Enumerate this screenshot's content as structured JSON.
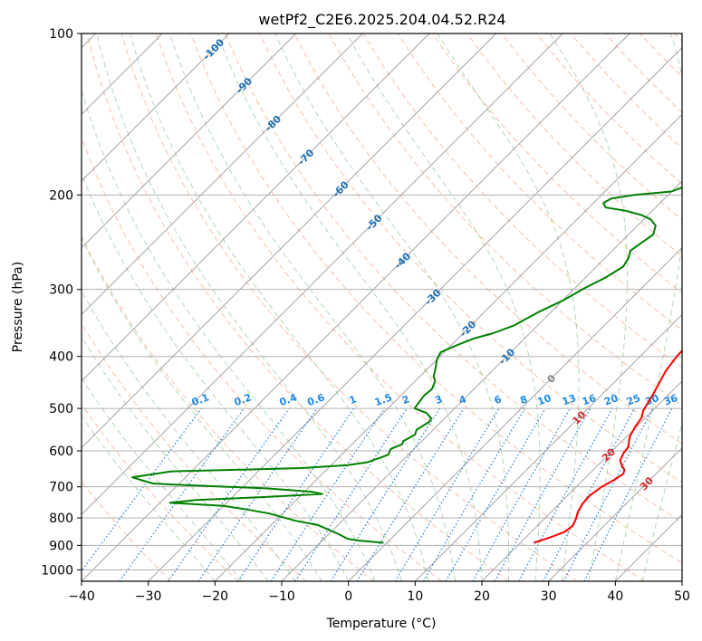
{
  "chart_data": {
    "type": "line",
    "title": "wetPf2_C2E6.2025.204.04.52.R24",
    "xlabel": "Temperature (°C)",
    "ylabel": "Pressure (hPa)",
    "xlim": [
      -40,
      50
    ],
    "ylim": [
      1050,
      100
    ],
    "y_scale": "log",
    "grid": true,
    "x_ticks": [
      "−40",
      "−30",
      "−20",
      "−10",
      "0",
      "10",
      "20",
      "30",
      "40",
      "50"
    ],
    "y_ticks": [
      "100",
      "200",
      "300",
      "400",
      "500",
      "600",
      "700",
      "800",
      "900",
      "1000"
    ],
    "series": [
      {
        "role": "temperature",
        "color": "#ff0000",
        "points": [
          [
            22.0,
            890
          ],
          [
            23.5,
            872
          ],
          [
            25.0,
            850
          ],
          [
            25.3,
            828
          ],
          [
            24.8,
            805
          ],
          [
            24.0,
            780
          ],
          [
            23.5,
            755
          ],
          [
            23.3,
            728
          ],
          [
            23.8,
            700
          ],
          [
            24.6,
            680
          ],
          [
            25.1,
            662
          ],
          [
            24.6,
            650
          ],
          [
            23.7,
            640
          ],
          [
            22.6,
            625
          ],
          [
            22.0,
            605
          ],
          [
            21.8,
            590
          ],
          [
            20.5,
            565
          ],
          [
            19.8,
            540
          ],
          [
            19.4,
            520
          ],
          [
            18.6,
            505
          ],
          [
            18.2,
            490
          ],
          [
            17.6,
            470
          ],
          [
            16.9,
            450
          ],
          [
            16.0,
            425
          ],
          [
            15.5,
            400
          ],
          [
            15.3,
            375
          ],
          [
            15.1,
            362
          ],
          [
            12.8,
            345
          ],
          [
            10.8,
            320
          ],
          [
            8.8,
            295
          ],
          [
            7.1,
            270
          ],
          [
            5.9,
            250
          ],
          [
            5.6,
            232
          ],
          [
            5.9,
            218
          ],
          [
            6.6,
            207
          ],
          [
            6.5,
            193
          ],
          [
            5.9,
            180
          ],
          [
            5.5,
            165
          ],
          [
            5.3,
            150
          ],
          [
            5.1,
            135
          ],
          [
            5.1,
            122
          ],
          [
            5.3,
            112
          ],
          [
            5.1,
            103
          ],
          [
            5.3,
            100
          ]
        ]
      },
      {
        "role": "dewpoint",
        "color": "#008000",
        "points": [
          [
            -0.5,
            890
          ],
          [
            -2.0,
            887
          ],
          [
            -4.5,
            882
          ],
          [
            -6.5,
            875
          ],
          [
            -8.5,
            858
          ],
          [
            -13.0,
            825
          ],
          [
            -17.0,
            810
          ],
          [
            -22.0,
            785
          ],
          [
            -26.5,
            770
          ],
          [
            -30.0,
            760
          ],
          [
            -36.5,
            752
          ],
          [
            -38.5,
            750
          ],
          [
            -35.0,
            741
          ],
          [
            -26.0,
            732
          ],
          [
            -17.0,
            722
          ],
          [
            -19.0,
            715
          ],
          [
            -26.0,
            705
          ],
          [
            -36.0,
            697
          ],
          [
            -41.0,
            693
          ],
          [
            -44.0,
            690
          ],
          [
            -48.0,
            672
          ],
          [
            -43.0,
            655
          ],
          [
            -32.0,
            650
          ],
          [
            -24.0,
            646
          ],
          [
            -17.5,
            638
          ],
          [
            -15.0,
            630
          ],
          [
            -13.0,
            610
          ],
          [
            -13.5,
            595
          ],
          [
            -12.5,
            583
          ],
          [
            -12.8,
            575
          ],
          [
            -12.0,
            560
          ],
          [
            -12.5,
            548
          ],
          [
            -11.8,
            530
          ],
          [
            -12.0,
            522
          ],
          [
            -13.5,
            510
          ],
          [
            -16.0,
            500
          ],
          [
            -16.2,
            490
          ],
          [
            -16.5,
            473
          ],
          [
            -16.3,
            460
          ],
          [
            -17.0,
            445
          ],
          [
            -18.0,
            435
          ],
          [
            -18.8,
            422
          ],
          [
            -20.0,
            405
          ],
          [
            -20.5,
            393
          ],
          [
            -19.0,
            380
          ],
          [
            -17.5,
            370
          ],
          [
            -15.5,
            362
          ],
          [
            -13.5,
            350
          ],
          [
            -12.0,
            332
          ],
          [
            -10.0,
            315
          ],
          [
            -8.5,
            298
          ],
          [
            -7.0,
            285
          ],
          [
            -6.0,
            272
          ],
          [
            -6.5,
            262
          ],
          [
            -7.3,
            254
          ],
          [
            -6.8,
            245
          ],
          [
            -6.3,
            237
          ],
          [
            -7.3,
            228
          ],
          [
            -9.0,
            222
          ],
          [
            -11.0,
            218
          ],
          [
            -14.0,
            214
          ],
          [
            -17.5,
            211
          ],
          [
            -18.5,
            207
          ],
          [
            -18.0,
            203
          ],
          [
            -15.0,
            200
          ],
          [
            -10.0,
            197
          ],
          [
            -8.0,
            190
          ],
          [
            -7.5,
            182
          ],
          [
            -8.0,
            175
          ],
          [
            -8.0,
            165
          ],
          [
            -8.3,
            155
          ],
          [
            -8.8,
            145
          ],
          [
            -8.5,
            140
          ],
          [
            -6.5,
            134
          ],
          [
            -5.0,
            127
          ],
          [
            -4.0,
            121
          ],
          [
            -3.0,
            116
          ],
          [
            -0.3,
            108
          ],
          [
            1.5,
            103
          ],
          [
            2.5,
            100
          ]
        ]
      }
    ],
    "mixing_ratio_labels": [
      "0.1",
      "0.2",
      "0.4",
      "0.6",
      "1",
      "1.5",
      "2",
      "3",
      "4",
      "6",
      "8",
      "10",
      "13",
      "16",
      "20",
      "25",
      "30",
      "36"
    ],
    "mixing_ratio_values": [
      0.1,
      0.2,
      0.4,
      0.6,
      1,
      1.5,
      2,
      3,
      4,
      6,
      8,
      10,
      13,
      16,
      20,
      25,
      30,
      36
    ],
    "isotherm_labels": [
      "-100",
      "-90",
      "-80",
      "-70",
      "-60",
      "-50",
      "-40",
      "-30",
      "-20",
      "-10",
      "0",
      "10",
      "20",
      "30",
      "40"
    ],
    "isotherm_values": [
      -100,
      -90,
      -80,
      -70,
      -60,
      -50,
      -40,
      -30,
      -20,
      -10,
      0,
      10,
      20,
      30,
      40
    ],
    "colors": {
      "temperature": "#ff0000",
      "dewpoint": "#008000",
      "grid": "#b0b0b0",
      "isotherm": "#9a9a9a",
      "dry_adiabat": "#f4a582",
      "moist_adiabat": "#8fc98f",
      "mixing_ratio": "#1f77d4",
      "isotherm_label_cold": "#1f6fb4",
      "isotherm_label_zero": "#808080",
      "isotherm_label_warm": "#d62728",
      "mixing_label": "#1e88e5"
    }
  }
}
